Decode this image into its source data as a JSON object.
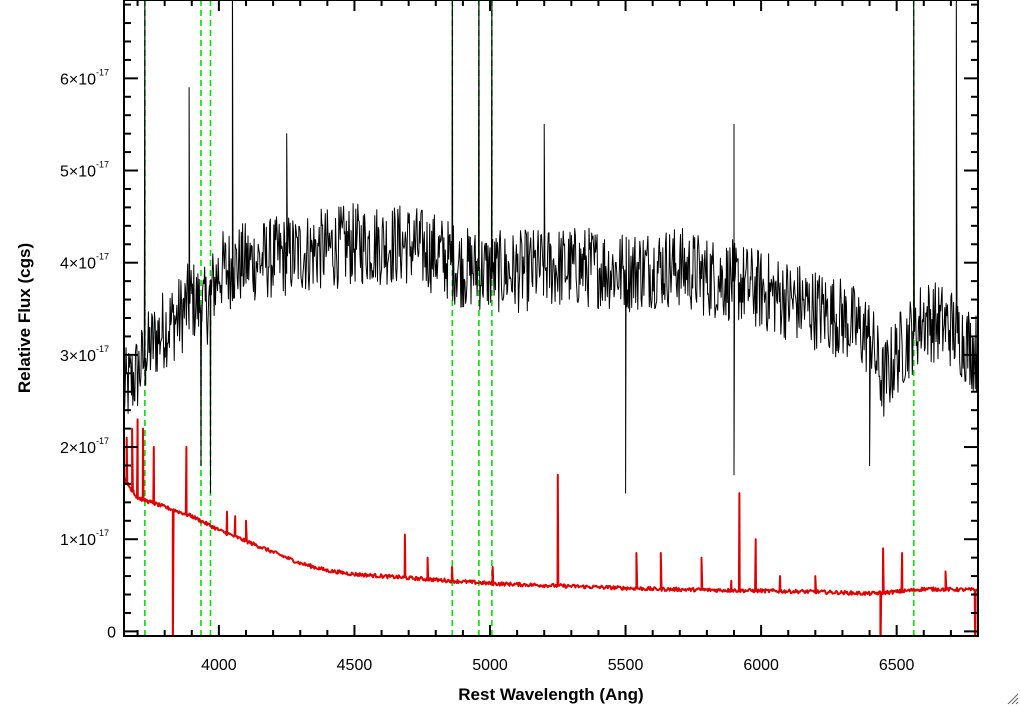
{
  "chart_data": {
    "type": "line",
    "title": "",
    "xlabel": "Rest Wavelength (Ang)",
    "ylabel": "Relative Flux (cgs)",
    "xlim": [
      3650,
      6800
    ],
    "ylim": [
      -5e-19,
      6.85e-17
    ],
    "x_ticks": [
      {
        "value": 4000,
        "label": "4000"
      },
      {
        "value": 4500,
        "label": "4500"
      },
      {
        "value": 5000,
        "label": "5000"
      },
      {
        "value": 5500,
        "label": "5500"
      },
      {
        "value": 6000,
        "label": "6000"
      },
      {
        "value": 6500,
        "label": "6500"
      }
    ],
    "y_ticks": [
      {
        "value": 0,
        "label": "0",
        "exp": ""
      },
      {
        "value": 1e-17,
        "label": "1×10",
        "exp": "-17"
      },
      {
        "value": 2e-17,
        "label": "2×10",
        "exp": "-17"
      },
      {
        "value": 3e-17,
        "label": "3×10",
        "exp": "-17"
      },
      {
        "value": 4e-17,
        "label": "4×10",
        "exp": "-17"
      },
      {
        "value": 5e-17,
        "label": "5×10",
        "exp": "-17"
      },
      {
        "value": 6e-17,
        "label": "6×10",
        "exp": "-17"
      }
    ],
    "grid": false,
    "vlines": {
      "color": "#00e000",
      "style": "dashed",
      "x": [
        3727,
        3934,
        3969,
        4861,
        4959,
        5007,
        6563
      ]
    },
    "series": [
      {
        "color": "#000000",
        "style": "noisy-line",
        "continuum": [
          [
            3650,
            2.6e-17
          ],
          [
            3700,
            2.8e-17
          ],
          [
            3750,
            3.1e-17
          ],
          [
            3800,
            3.3e-17
          ],
          [
            3850,
            3.4e-17
          ],
          [
            3900,
            3.6e-17
          ],
          [
            3950,
            3.5e-17
          ],
          [
            4000,
            3.9e-17
          ],
          [
            4100,
            4e-17
          ],
          [
            4200,
            4.05e-17
          ],
          [
            4300,
            4.1e-17
          ],
          [
            4400,
            4.15e-17
          ],
          [
            4500,
            4.2e-17
          ],
          [
            4600,
            4.2e-17
          ],
          [
            4700,
            4.2e-17
          ],
          [
            4800,
            4.1e-17
          ],
          [
            4900,
            3.95e-17
          ],
          [
            5000,
            3.9e-17
          ],
          [
            5100,
            3.9e-17
          ],
          [
            5200,
            3.95e-17
          ],
          [
            5300,
            3.95e-17
          ],
          [
            5400,
            3.95e-17
          ],
          [
            5500,
            3.9e-17
          ],
          [
            5600,
            3.95e-17
          ],
          [
            5700,
            3.95e-17
          ],
          [
            5800,
            3.85e-17
          ],
          [
            5900,
            3.8e-17
          ],
          [
            6000,
            3.7e-17
          ],
          [
            6100,
            3.6e-17
          ],
          [
            6200,
            3.5e-17
          ],
          [
            6300,
            3.4e-17
          ],
          [
            6400,
            3.2e-17
          ],
          [
            6450,
            2.7e-17
          ],
          [
            6500,
            3e-17
          ],
          [
            6600,
            3.4e-17
          ],
          [
            6700,
            3.3e-17
          ],
          [
            6800,
            3e-17
          ]
        ],
        "noise_amplitude": 4.5e-18,
        "features": [
          [
            3727,
            7.5e-17
          ],
          [
            3890,
            5.9e-17
          ],
          [
            3934,
            1.8e-17
          ],
          [
            3969,
            1.5e-17
          ],
          [
            4050,
            7.5e-17
          ],
          [
            4250,
            5.4e-17
          ],
          [
            4861,
            7.5e-17
          ],
          [
            4959,
            7.5e-17
          ],
          [
            5007,
            7.5e-17
          ],
          [
            5200,
            5.5e-17
          ],
          [
            5500,
            1.5e-17
          ],
          [
            5900,
            5.5e-17
          ],
          [
            5900,
            1.7e-17
          ],
          [
            6400,
            1.8e-17
          ],
          [
            6563,
            7.5e-17
          ],
          [
            6720,
            7e-17
          ]
        ]
      },
      {
        "color": "#e00000",
        "style": "line",
        "continuum": [
          [
            3650,
            1.65e-17
          ],
          [
            3700,
            1.45e-17
          ],
          [
            3750,
            1.4e-17
          ],
          [
            3800,
            1.35e-17
          ],
          [
            3900,
            1.25e-17
          ],
          [
            4000,
            1.1e-17
          ],
          [
            4100,
            9.8e-18
          ],
          [
            4200,
            8.6e-18
          ],
          [
            4300,
            7.4e-18
          ],
          [
            4400,
            6.6e-18
          ],
          [
            4500,
            6.2e-18
          ],
          [
            4600,
            6e-18
          ],
          [
            4700,
            5.8e-18
          ],
          [
            4800,
            5.6e-18
          ],
          [
            4900,
            5.4e-18
          ],
          [
            5000,
            5.2e-18
          ],
          [
            5200,
            5e-18
          ],
          [
            5400,
            4.8e-18
          ],
          [
            5600,
            4.6e-18
          ],
          [
            5800,
            4.5e-18
          ],
          [
            6000,
            4.4e-18
          ],
          [
            6200,
            4.3e-18
          ],
          [
            6400,
            4.1e-18
          ],
          [
            6500,
            4.3e-18
          ],
          [
            6600,
            4.6e-18
          ],
          [
            6800,
            4.5e-18
          ]
        ],
        "features": [
          [
            3660,
            2.1e-17
          ],
          [
            3680,
            2.2e-17
          ],
          [
            3700,
            2.3e-17
          ],
          [
            3720,
            2.2e-17
          ],
          [
            3760,
            2e-17
          ],
          [
            3830,
            -3e-18
          ],
          [
            3880,
            2e-17
          ],
          [
            4030,
            1.3e-17
          ],
          [
            4060,
            1.25e-17
          ],
          [
            4100,
            1.2e-17
          ],
          [
            4686,
            1.05e-17
          ],
          [
            4770,
            8e-18
          ],
          [
            4860,
            7e-18
          ],
          [
            5010,
            7e-18
          ],
          [
            5250,
            1.7e-17
          ],
          [
            5540,
            8.5e-18
          ],
          [
            5630,
            8.5e-18
          ],
          [
            5780,
            8e-18
          ],
          [
            5890,
            5.5e-18
          ],
          [
            5920,
            1.5e-17
          ],
          [
            5980,
            1e-17
          ],
          [
            6070,
            6e-18
          ],
          [
            6200,
            6e-18
          ],
          [
            6440,
            -3e-18
          ],
          [
            6450,
            9e-18
          ],
          [
            6520,
            8.5e-18
          ],
          [
            6680,
            6.5e-18
          ],
          [
            6790,
            -3e-18
          ]
        ]
      }
    ]
  }
}
